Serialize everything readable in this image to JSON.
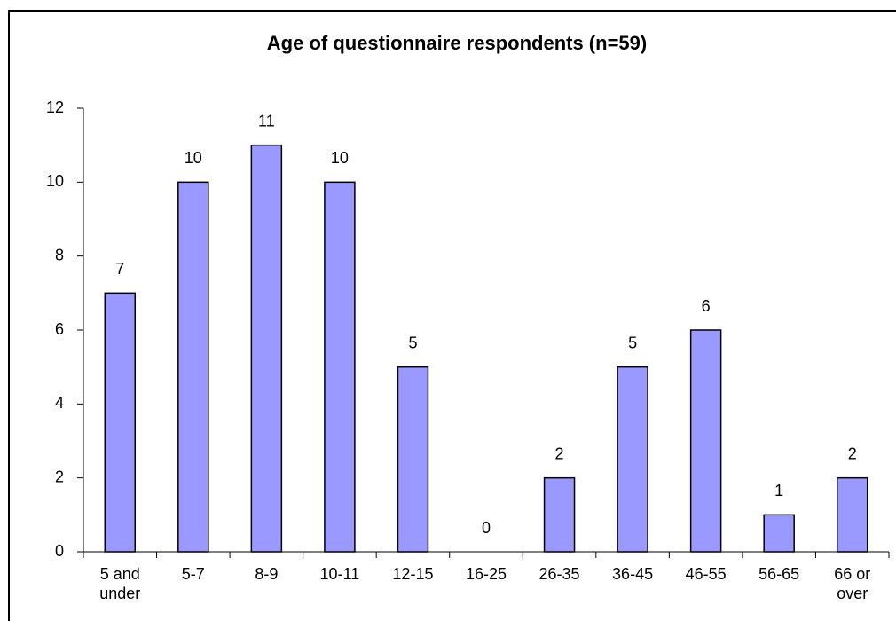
{
  "chart_data": {
    "type": "bar",
    "title": "Age of questionnaire respondents (n=59)",
    "categories": [
      "5 and under",
      "5-7",
      "8-9",
      "10-11",
      "12-15",
      "16-25",
      "26-35",
      "36-45",
      "46-55",
      "56-65",
      "66 or over"
    ],
    "values": [
      7,
      10,
      11,
      10,
      5,
      0,
      2,
      5,
      6,
      1,
      2
    ],
    "color": "#9999ff",
    "ylim": [
      0,
      12
    ],
    "yticks": [
      0,
      2,
      4,
      6,
      8,
      10,
      12
    ],
    "grid": false
  }
}
